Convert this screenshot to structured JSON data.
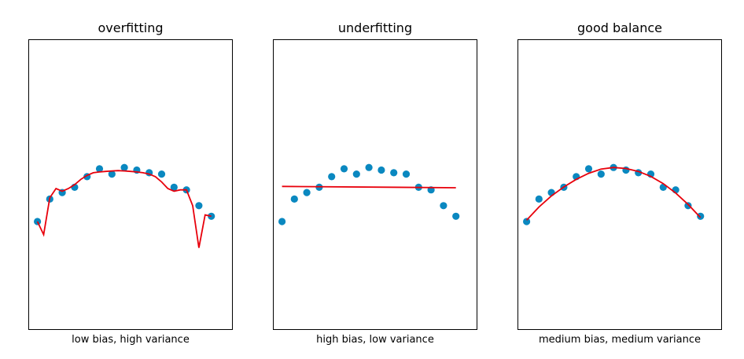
{
  "chart_data": [
    {
      "type": "scatter",
      "title": "overfitting",
      "xlabel": "low bias, high variance",
      "ylabel": "",
      "xlim": [
        -0.7,
        15.7
      ],
      "ylim": [
        -0.4,
        10.6
      ],
      "grid": false,
      "points": {
        "color": "#0a88c0",
        "x": [
          0,
          1,
          2,
          3,
          4,
          5,
          6,
          7,
          8,
          9,
          10,
          11,
          12,
          13,
          14
        ],
        "y": [
          3.7,
          4.55,
          4.8,
          5.0,
          5.4,
          5.7,
          5.5,
          5.75,
          5.65,
          5.55,
          5.5,
          5.0,
          4.9,
          4.3,
          3.9
        ]
      },
      "fit": {
        "color": "#e8000b",
        "x": [
          0,
          0.5,
          1,
          1.5,
          2,
          2.5,
          3,
          3.5,
          4,
          4.5,
          5,
          5.5,
          6,
          6.5,
          7,
          7.5,
          8,
          8.5,
          9,
          9.5,
          10,
          10.5,
          11,
          11.5,
          12,
          12.5,
          13,
          13.5,
          14
        ],
        "y": [
          3.7,
          3.2,
          4.6,
          4.95,
          4.85,
          4.95,
          5.1,
          5.3,
          5.45,
          5.55,
          5.58,
          5.6,
          5.62,
          5.63,
          5.62,
          5.6,
          5.58,
          5.55,
          5.5,
          5.4,
          5.2,
          4.95,
          4.85,
          4.9,
          4.9,
          4.3,
          2.7,
          3.95,
          3.9
        ]
      }
    },
    {
      "type": "scatter",
      "title": "underfitting",
      "xlabel": "high bias, low variance",
      "ylabel": "",
      "xlim": [
        -0.7,
        15.7
      ],
      "ylim": [
        -0.4,
        10.6
      ],
      "grid": false,
      "points": {
        "color": "#0a88c0",
        "x": [
          0,
          1,
          2,
          3,
          4,
          5,
          6,
          7,
          8,
          9,
          10,
          11,
          12,
          13,
          14
        ],
        "y": [
          3.7,
          4.55,
          4.8,
          5.0,
          5.4,
          5.7,
          5.5,
          5.75,
          5.65,
          5.55,
          5.5,
          5.0,
          4.9,
          4.3,
          3.9
        ]
      },
      "fit": {
        "color": "#e8000b",
        "x": [
          0,
          14
        ],
        "y": [
          5.03,
          4.98
        ]
      }
    },
    {
      "type": "scatter",
      "title": "good balance",
      "xlabel": "medium bias, medium variance",
      "ylabel": "",
      "xlim": [
        -0.7,
        15.7
      ],
      "ylim": [
        -0.4,
        10.6
      ],
      "grid": false,
      "points": {
        "color": "#0a88c0",
        "x": [
          0,
          1,
          2,
          3,
          4,
          5,
          6,
          7,
          8,
          9,
          10,
          11,
          12,
          13,
          14
        ],
        "y": [
          3.7,
          4.55,
          4.8,
          5.0,
          5.4,
          5.7,
          5.5,
          5.75,
          5.65,
          5.55,
          5.5,
          5.0,
          4.9,
          4.3,
          3.9
        ]
      },
      "fit": {
        "color": "#e8000b",
        "x": [
          0,
          1,
          2,
          3,
          4,
          5,
          6,
          7,
          8,
          9,
          10,
          11,
          12,
          13,
          14
        ],
        "y": [
          3.75,
          4.25,
          4.67,
          5.01,
          5.3,
          5.53,
          5.69,
          5.75,
          5.71,
          5.6,
          5.41,
          5.14,
          4.78,
          4.35,
          3.85
        ]
      }
    }
  ]
}
